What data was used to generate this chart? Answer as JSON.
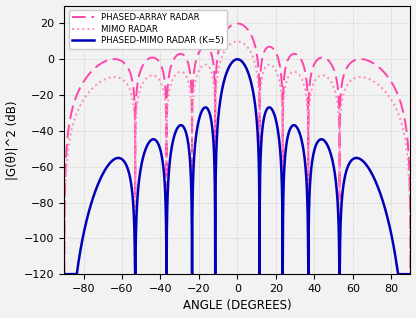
{
  "xlabel": "ANGLE (DEGREES)",
  "ylabel": "|G(θ)|^2 (dB)",
  "xlim": [
    -90,
    90
  ],
  "ylim": [
    -120,
    30
  ],
  "yticks": [
    -120,
    -100,
    -80,
    -60,
    -40,
    -20,
    0,
    20
  ],
  "xticks": [
    -80,
    -60,
    -40,
    -20,
    0,
    20,
    40,
    60,
    80
  ],
  "legend": [
    "PHASED-ARRAY RADAR",
    "MIMO RADAR",
    "PHASED-MIMO RADAR (K=5)"
  ],
  "pa_color": "#FF44AA",
  "mimo_color": "#FF88BB",
  "pm_color": "#0000BB",
  "grid_color": "#BBBBBB",
  "background_color": "#F2F2F2",
  "N": 10,
  "K": 5,
  "pa_peak_dB": 20,
  "pm_peak_dB": 0
}
